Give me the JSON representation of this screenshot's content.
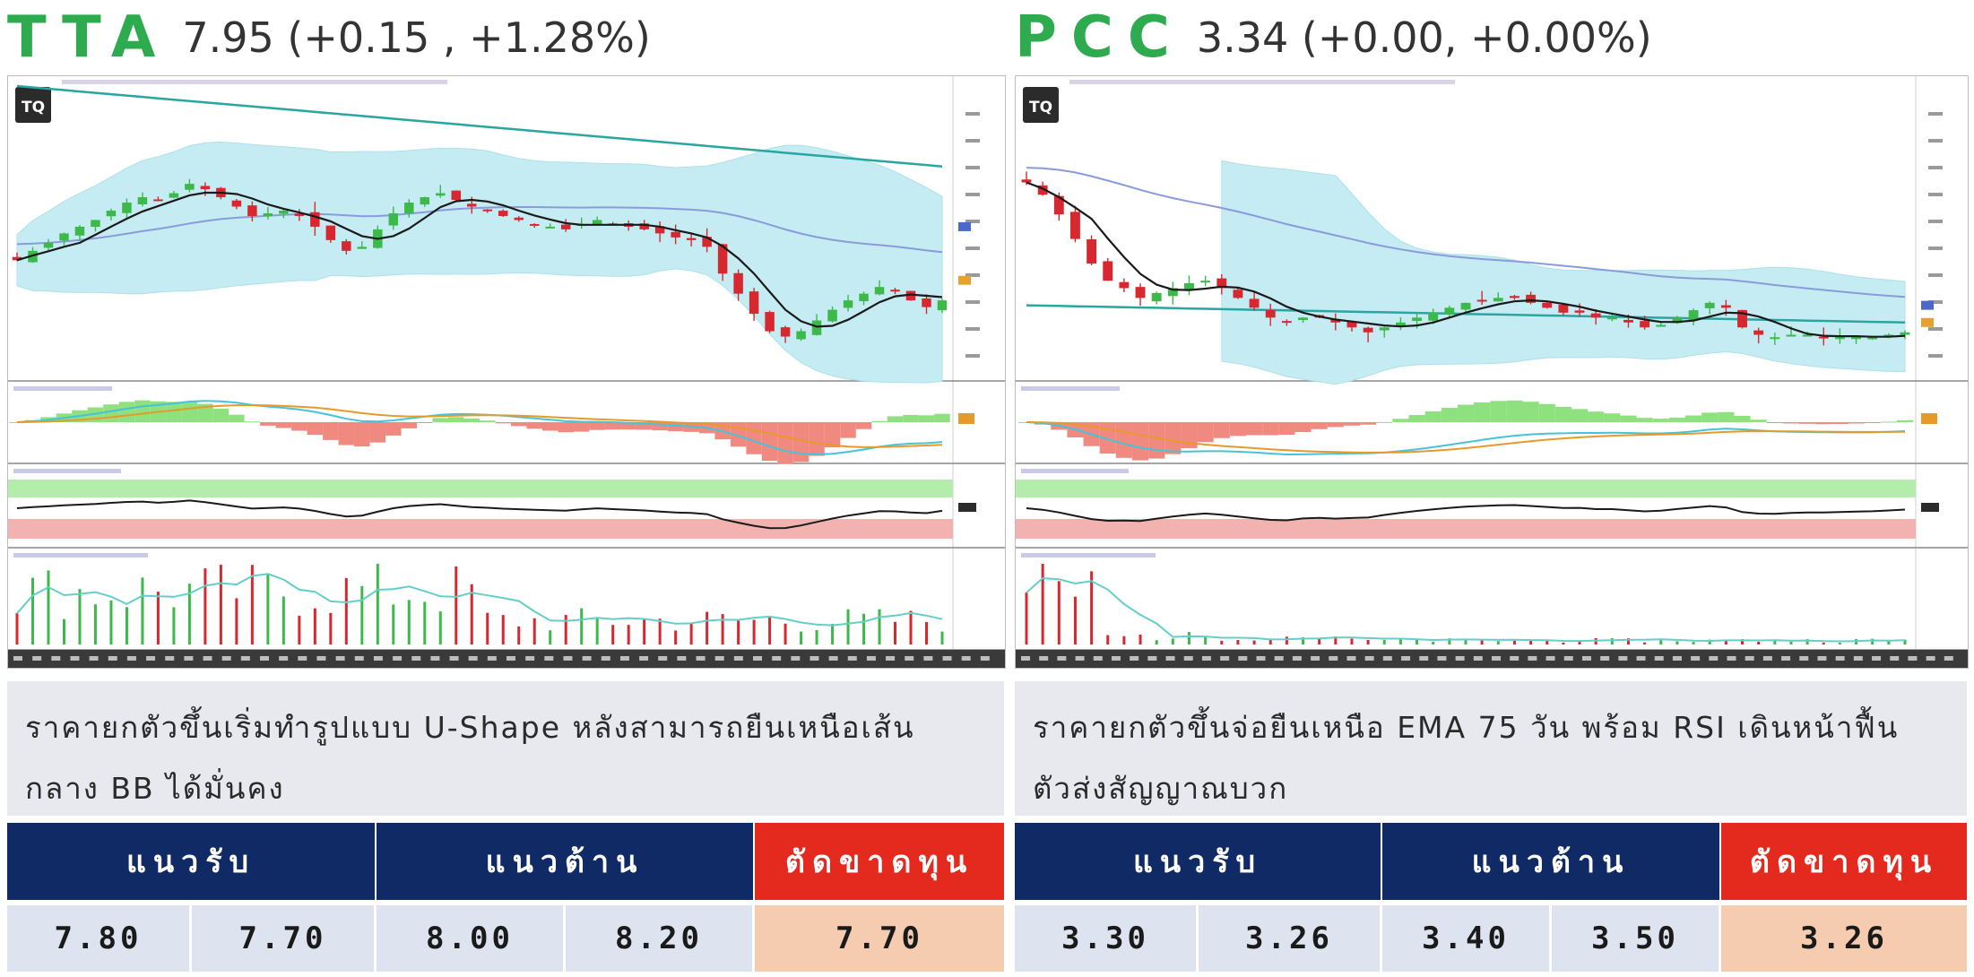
{
  "panels": [
    {
      "ticker": "TTA",
      "quote": "7.95 (+0.15 , +1.28%)",
      "logo": "TQ",
      "description": [
        "ราคายกตัวขึ้นเริ่มทำรูปแบบ U-Shape หลังสามารถยืนเหนือเส้น",
        "กลาง BB ได้มั่นคง"
      ],
      "headers": {
        "support": "แนวรับ",
        "resistance": "แนวต้าน",
        "stop_loss": "ตัดขาดทุน"
      },
      "support": [
        "7.80",
        "7.70"
      ],
      "resistance": [
        "8.00",
        "8.20"
      ],
      "stop_loss": "7.70"
    },
    {
      "ticker": "PCC",
      "quote": "3.34 (+0.00, +0.00%)",
      "logo": "TQ",
      "description": [
        "ราคายกตัวขึ้นจ่อยืนเหนือ EMA 75 วัน พร้อม RSI เดินหน้าฟื้น",
        "ตัวส่งสัญญาณบวก"
      ],
      "headers": {
        "support": "แนวรับ",
        "resistance": "แนวต้าน",
        "stop_loss": "ตัดขาดทุน"
      },
      "support": [
        "3.30",
        "3.26"
      ],
      "resistance": [
        "3.40",
        "3.50"
      ],
      "stop_loss": "3.26"
    }
  ],
  "colors": {
    "ticker": "#2eaa4f",
    "header_blue": "#102a66",
    "header_red": "#e42a1e",
    "value_cell": "#dde3ef",
    "stop_cell": "#f6ccb0",
    "candle_up": "#3cb94a",
    "candle_down": "#d8282f",
    "bollinger": "#c5ecf3",
    "ema_long": "#2aa6a0",
    "ema_mid": "#8a9bdc",
    "ma_short": "#1a1a1a"
  },
  "chart_data": [
    {
      "type": "candlestick",
      "ticker": "TTA",
      "closes": [
        8.25,
        8.32,
        8.38,
        8.45,
        8.5,
        8.55,
        8.62,
        8.68,
        8.72,
        8.7,
        8.75,
        8.82,
        8.78,
        8.72,
        8.65,
        8.58,
        8.6,
        8.62,
        8.58,
        8.5,
        8.4,
        8.32,
        8.35,
        8.48,
        8.6,
        8.68,
        8.72,
        8.75,
        8.7,
        8.65,
        8.62,
        8.58,
        8.55,
        8.52,
        8.5,
        8.48,
        8.52,
        8.55,
        8.52,
        8.5,
        8.48,
        8.45,
        8.42,
        8.4,
        8.35,
        8.15,
        8.0,
        7.85,
        7.72,
        7.68,
        7.72,
        7.8,
        7.88,
        7.95,
        8.0,
        8.05,
        8.02,
        7.95,
        7.9,
        7.95
      ]
    },
    {
      "type": "candlestick",
      "ticker": "PCC",
      "closes": [
        3.95,
        3.9,
        3.82,
        3.72,
        3.62,
        3.55,
        3.52,
        3.48,
        3.5,
        3.52,
        3.54,
        3.55,
        3.52,
        3.48,
        3.44,
        3.4,
        3.38,
        3.4,
        3.4,
        3.38,
        3.36,
        3.34,
        3.36,
        3.38,
        3.4,
        3.42,
        3.44,
        3.46,
        3.47,
        3.48,
        3.48,
        3.46,
        3.44,
        3.42,
        3.42,
        3.4,
        3.4,
        3.38,
        3.36,
        3.37,
        3.4,
        3.43,
        3.46,
        3.44,
        3.36,
        3.33,
        3.32,
        3.33,
        3.33,
        3.32,
        3.32,
        3.32,
        3.32,
        3.33,
        3.34
      ]
    }
  ]
}
